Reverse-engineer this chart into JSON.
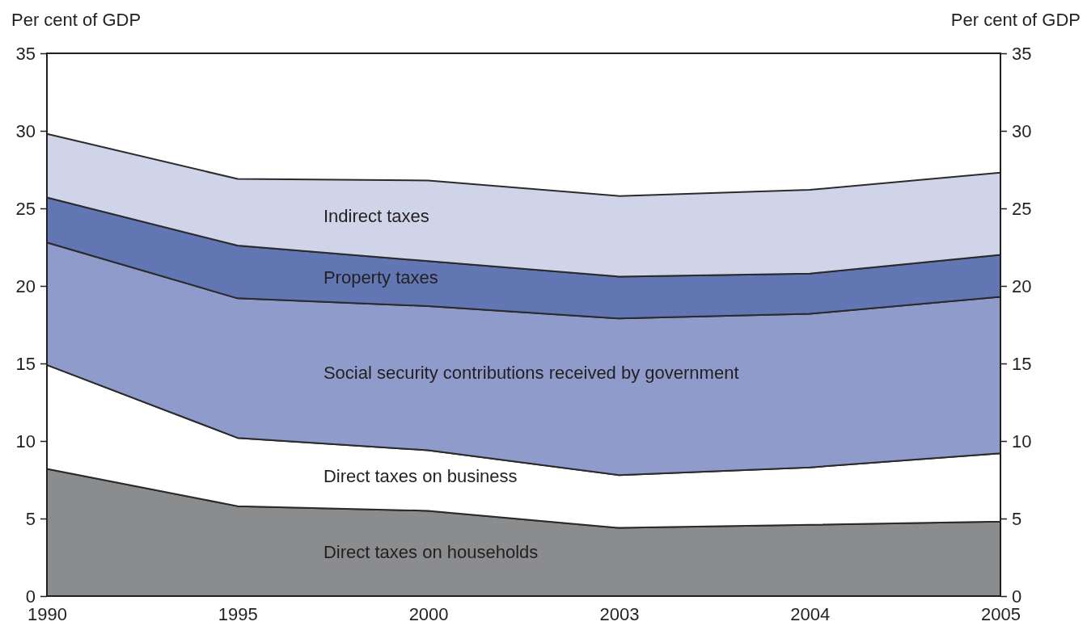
{
  "chart_data": {
    "type": "area",
    "stacked": true,
    "ylabel": "Per cent of GDP",
    "y2label": "Per cent of GDP",
    "categories": [
      "1990",
      "1995",
      "2000",
      "2003",
      "2004",
      "2005"
    ],
    "ylim": [
      0,
      35
    ],
    "yticks": [
      0,
      5,
      10,
      15,
      20,
      25,
      30,
      35
    ],
    "y2lim": [
      0,
      35
    ],
    "y2ticks": [
      0,
      5,
      10,
      15,
      20,
      25,
      30,
      35
    ],
    "grid": false,
    "legend": false,
    "series": [
      {
        "name": "Direct taxes on households",
        "color": "#8a8c8e",
        "values": [
          8.2,
          5.8,
          5.5,
          4.4,
          4.6,
          4.8
        ]
      },
      {
        "name": "Direct taxes on business",
        "color": "#ffffff",
        "values": [
          6.7,
          4.4,
          3.9,
          3.4,
          3.7,
          4.4
        ]
      },
      {
        "name": "Social security contributions received by government",
        "color": "#8f9ccb",
        "values": [
          7.9,
          9.0,
          9.3,
          10.1,
          9.9,
          10.1
        ]
      },
      {
        "name": "Property taxes",
        "color": "#6276b3",
        "values": [
          2.9,
          3.4,
          2.9,
          2.7,
          2.6,
          2.7
        ]
      },
      {
        "name": "Indirect taxes",
        "color": "#d0d4e8",
        "values": [
          4.1,
          4.3,
          5.2,
          5.2,
          5.4,
          5.3
        ]
      }
    ]
  }
}
